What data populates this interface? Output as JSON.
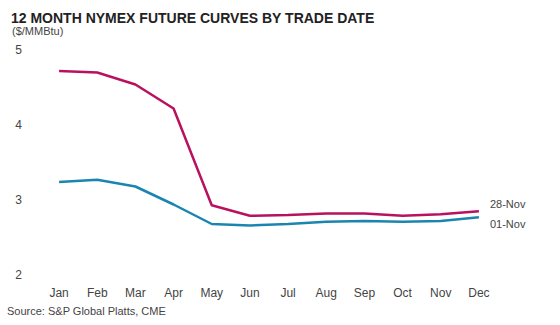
{
  "chart_data": {
    "type": "line",
    "title": "12 MONTH NYMEX FUTURE CURVES BY TRADE DATE",
    "y_label": "($/MMBtu)",
    "source": "Source: S&P Global Platts, CME",
    "categories": [
      "Jan",
      "Feb",
      "Mar",
      "Apr",
      "May",
      "Jun",
      "Jul",
      "Aug",
      "Sep",
      "Oct",
      "Nov",
      "Dec"
    ],
    "series": [
      {
        "name": "28-Nov",
        "color": "#b8125f",
        "values": [
          4.72,
          4.7,
          4.54,
          4.22,
          2.93,
          2.79,
          2.8,
          2.82,
          2.82,
          2.79,
          2.81,
          2.85
        ]
      },
      {
        "name": "01-Nov",
        "color": "#1a86b0",
        "values": [
          3.24,
          3.27,
          3.18,
          2.94,
          2.68,
          2.66,
          2.68,
          2.71,
          2.72,
          2.71,
          2.72,
          2.77
        ]
      }
    ],
    "ylim": [
      2,
      5
    ],
    "yticks": [
      2,
      3,
      4,
      5
    ],
    "grid": false
  }
}
